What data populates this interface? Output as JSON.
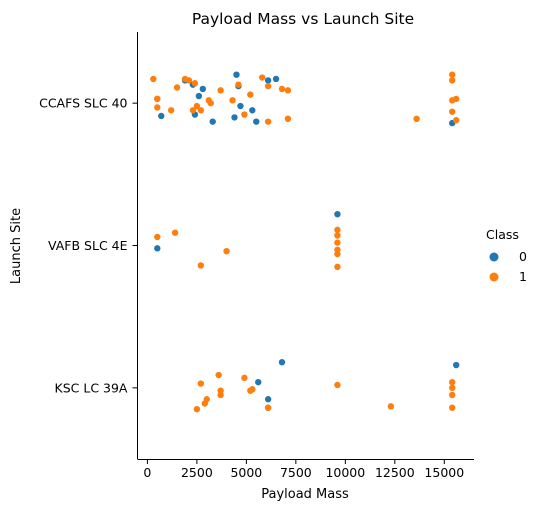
{
  "chart_data": {
    "type": "scatter",
    "title": "Payload Mass vs Launch Site",
    "xlabel": "Payload Mass",
    "ylabel": "Launch Site",
    "xlim": [
      -500,
      16500
    ],
    "xticks": [
      0,
      2500,
      5000,
      7500,
      10000,
      12500,
      15000
    ],
    "xtick_labels": [
      "0",
      "2500",
      "5000",
      "7500",
      "10000",
      "12500",
      "15000"
    ],
    "categories": [
      "CCAFS SLC 40",
      "VAFB SLC 4E",
      "KSC LC 39A"
    ],
    "grid": false,
    "legend": {
      "title": "Class",
      "placement": "right",
      "entries": [
        {
          "label": "0",
          "color": "#1f77b4"
        },
        {
          "label": "1",
          "color": "#ff7f0e"
        }
      ]
    },
    "series": [
      {
        "name": "0",
        "color": "#1f77b4",
        "points": [
          {
            "x": 500,
            "site": "CCAFS SLC 40",
            "jitter": 0.03
          },
          {
            "x": 700,
            "site": "CCAFS SLC 40",
            "jitter": -0.09
          },
          {
            "x": 1900,
            "site": "CCAFS SLC 40",
            "jitter": 0.16
          },
          {
            "x": 2300,
            "site": "CCAFS SLC 40",
            "jitter": 0.13
          },
          {
            "x": 2400,
            "site": "CCAFS SLC 40",
            "jitter": -0.08
          },
          {
            "x": 2600,
            "site": "CCAFS SLC 40",
            "jitter": 0.05
          },
          {
            "x": 2800,
            "site": "CCAFS SLC 40",
            "jitter": 0.1
          },
          {
            "x": 3300,
            "site": "CCAFS SLC 40",
            "jitter": -0.13
          },
          {
            "x": 4400,
            "site": "CCAFS SLC 40",
            "jitter": -0.1
          },
          {
            "x": 4500,
            "site": "CCAFS SLC 40",
            "jitter": 0.2
          },
          {
            "x": 4600,
            "site": "CCAFS SLC 40",
            "jitter": 0.12
          },
          {
            "x": 4700,
            "site": "CCAFS SLC 40",
            "jitter": -0.02
          },
          {
            "x": 5300,
            "site": "CCAFS SLC 40",
            "jitter": -0.05
          },
          {
            "x": 5500,
            "site": "CCAFS SLC 40",
            "jitter": -0.13
          },
          {
            "x": 6100,
            "site": "CCAFS SLC 40",
            "jitter": 0.16
          },
          {
            "x": 6500,
            "site": "CCAFS SLC 40",
            "jitter": 0.17
          },
          {
            "x": 15400,
            "site": "CCAFS SLC 40",
            "jitter": -0.14
          },
          {
            "x": 500,
            "site": "VAFB SLC 4E",
            "jitter": -0.02
          },
          {
            "x": 9600,
            "site": "VAFB SLC 4E",
            "jitter": 0.22
          },
          {
            "x": 5600,
            "site": "KSC LC 39A",
            "jitter": 0.04
          },
          {
            "x": 6100,
            "site": "KSC LC 39A",
            "jitter": -0.08
          },
          {
            "x": 6100,
            "site": "KSC LC 39A",
            "jitter": -0.14
          },
          {
            "x": 6800,
            "site": "KSC LC 39A",
            "jitter": 0.18
          },
          {
            "x": 15600,
            "site": "KSC LC 39A",
            "jitter": 0.16
          }
        ]
      },
      {
        "name": "1",
        "color": "#ff7f0e",
        "points": [
          {
            "x": 300,
            "site": "CCAFS SLC 40",
            "jitter": 0.17
          },
          {
            "x": 500,
            "site": "CCAFS SLC 40",
            "jitter": 0.03
          },
          {
            "x": 500,
            "site": "CCAFS SLC 40",
            "jitter": -0.03
          },
          {
            "x": 1200,
            "site": "CCAFS SLC 40",
            "jitter": -0.05
          },
          {
            "x": 1500,
            "site": "CCAFS SLC 40",
            "jitter": 0.11
          },
          {
            "x": 1900,
            "site": "CCAFS SLC 40",
            "jitter": 0.17
          },
          {
            "x": 2100,
            "site": "CCAFS SLC 40",
            "jitter": 0.16
          },
          {
            "x": 2300,
            "site": "CCAFS SLC 40",
            "jitter": -0.05
          },
          {
            "x": 2400,
            "site": "CCAFS SLC 40",
            "jitter": 0.14
          },
          {
            "x": 2500,
            "site": "CCAFS SLC 40",
            "jitter": -0.02
          },
          {
            "x": 2700,
            "site": "CCAFS SLC 40",
            "jitter": -0.05
          },
          {
            "x": 3100,
            "site": "CCAFS SLC 40",
            "jitter": 0.02
          },
          {
            "x": 3200,
            "site": "CCAFS SLC 40",
            "jitter": 0.0
          },
          {
            "x": 3700,
            "site": "CCAFS SLC 40",
            "jitter": 0.09
          },
          {
            "x": 4300,
            "site": "CCAFS SLC 40",
            "jitter": 0.02
          },
          {
            "x": 4600,
            "site": "CCAFS SLC 40",
            "jitter": 0.13
          },
          {
            "x": 4900,
            "site": "CCAFS SLC 40",
            "jitter": -0.08
          },
          {
            "x": 5200,
            "site": "CCAFS SLC 40",
            "jitter": 0.06
          },
          {
            "x": 5800,
            "site": "CCAFS SLC 40",
            "jitter": 0.18
          },
          {
            "x": 6100,
            "site": "CCAFS SLC 40",
            "jitter": -0.13
          },
          {
            "x": 6100,
            "site": "CCAFS SLC 40",
            "jitter": 0.12
          },
          {
            "x": 6800,
            "site": "CCAFS SLC 40",
            "jitter": 0.1
          },
          {
            "x": 7100,
            "site": "CCAFS SLC 40",
            "jitter": 0.09
          },
          {
            "x": 7100,
            "site": "CCAFS SLC 40",
            "jitter": -0.11
          },
          {
            "x": 13600,
            "site": "CCAFS SLC 40",
            "jitter": -0.11
          },
          {
            "x": 15400,
            "site": "CCAFS SLC 40",
            "jitter": 0.2
          },
          {
            "x": 15400,
            "site": "CCAFS SLC 40",
            "jitter": 0.16
          },
          {
            "x": 15400,
            "site": "CCAFS SLC 40",
            "jitter": 0.02
          },
          {
            "x": 15400,
            "site": "CCAFS SLC 40",
            "jitter": -0.06
          },
          {
            "x": 15600,
            "site": "CCAFS SLC 40",
            "jitter": 0.03
          },
          {
            "x": 15600,
            "site": "CCAFS SLC 40",
            "jitter": -0.12
          },
          {
            "x": 500,
            "site": "VAFB SLC 4E",
            "jitter": 0.06
          },
          {
            "x": 1400,
            "site": "VAFB SLC 4E",
            "jitter": 0.09
          },
          {
            "x": 2700,
            "site": "VAFB SLC 4E",
            "jitter": -0.14
          },
          {
            "x": 4000,
            "site": "VAFB SLC 4E",
            "jitter": -0.04
          },
          {
            "x": 9600,
            "site": "VAFB SLC 4E",
            "jitter": 0.11
          },
          {
            "x": 9600,
            "site": "VAFB SLC 4E",
            "jitter": 0.07
          },
          {
            "x": 9600,
            "site": "VAFB SLC 4E",
            "jitter": 0.02
          },
          {
            "x": 9600,
            "site": "VAFB SLC 4E",
            "jitter": -0.03
          },
          {
            "x": 9600,
            "site": "VAFB SLC 4E",
            "jitter": -0.06
          },
          {
            "x": 9600,
            "site": "VAFB SLC 4E",
            "jitter": -0.15
          },
          {
            "x": 2500,
            "site": "KSC LC 39A",
            "jitter": -0.15
          },
          {
            "x": 2700,
            "site": "KSC LC 39A",
            "jitter": 0.03
          },
          {
            "x": 2900,
            "site": "KSC LC 39A",
            "jitter": -0.11
          },
          {
            "x": 3000,
            "site": "KSC LC 39A",
            "jitter": -0.08
          },
          {
            "x": 3600,
            "site": "KSC LC 39A",
            "jitter": 0.09
          },
          {
            "x": 3700,
            "site": "KSC LC 39A",
            "jitter": -0.02
          },
          {
            "x": 3700,
            "site": "KSC LC 39A",
            "jitter": -0.05
          },
          {
            "x": 4900,
            "site": "KSC LC 39A",
            "jitter": 0.07
          },
          {
            "x": 5200,
            "site": "KSC LC 39A",
            "jitter": -0.02
          },
          {
            "x": 5300,
            "site": "KSC LC 39A",
            "jitter": -0.01
          },
          {
            "x": 6100,
            "site": "KSC LC 39A",
            "jitter": -0.14
          },
          {
            "x": 9600,
            "site": "KSC LC 39A",
            "jitter": 0.02
          },
          {
            "x": 12300,
            "site": "KSC LC 39A",
            "jitter": -0.13
          },
          {
            "x": 15400,
            "site": "KSC LC 39A",
            "jitter": 0.04
          },
          {
            "x": 15400,
            "site": "KSC LC 39A",
            "jitter": 0.0
          },
          {
            "x": 15400,
            "site": "KSC LC 39A",
            "jitter": -0.05
          },
          {
            "x": 15400,
            "site": "KSC LC 39A",
            "jitter": -0.14
          }
        ]
      }
    ]
  }
}
